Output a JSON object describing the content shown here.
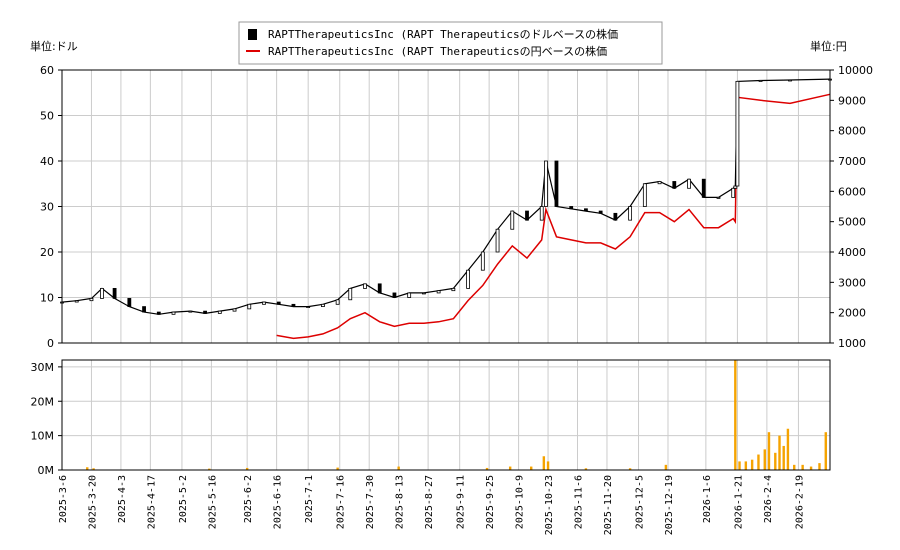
{
  "chart_data": {
    "type": "line",
    "legend": {
      "placement": "top-center",
      "entries": [
        {
          "label": "RAPTTherapeuticsInc (RAPT Therapeuticsのドルベースの株価",
          "color": "#000000",
          "marker": "candlestick"
        },
        {
          "label": "RAPTTherapeuticsInc (RAPT Therapeuticsの円ベースの株価",
          "color": "#dd0000",
          "marker": "line"
        }
      ]
    },
    "left_unit": "単位:ドル",
    "right_unit": "単位:円",
    "left_axis": {
      "ylim": [
        0,
        60
      ],
      "ticks": [
        0,
        10,
        20,
        30,
        40,
        50,
        60
      ]
    },
    "right_axis": {
      "ylim": [
        1000,
        10000
      ],
      "ticks": [
        1000,
        2000,
        3000,
        4000,
        5000,
        6000,
        7000,
        8000,
        9000,
        10000
      ]
    },
    "volume_axis": {
      "ylim": [
        0,
        32000000
      ],
      "ticks": [
        0,
        10000000,
        20000000,
        30000000
      ],
      "tick_labels": [
        "0M",
        "10M",
        "20M",
        "30M"
      ]
    },
    "x_range": [
      "2025-03-06",
      "2026-03-06"
    ],
    "x_ticks": [
      "2025-3-6",
      "2025-3-20",
      "2025-4-3",
      "2025-4-17",
      "2025-5-2",
      "2025-5-16",
      "2025-6-2",
      "2025-6-16",
      "2025-7-1",
      "2025-7-16",
      "2025-7-30",
      "2025-8-13",
      "2025-8-27",
      "2025-9-11",
      "2025-9-25",
      "2025-10-9",
      "2025-10-23",
      "2025-11-6",
      "2025-11-20",
      "2025-12-5",
      "2025-12-19",
      "2026-1-6",
      "2026-1-21",
      "2026-2-4",
      "2026-2-19"
    ],
    "grid": true,
    "usd_price": {
      "dates": [
        "2025-03-06",
        "2025-03-13",
        "2025-03-20",
        "2025-03-25",
        "2025-03-31",
        "2025-04-07",
        "2025-04-14",
        "2025-04-21",
        "2025-04-28",
        "2025-05-06",
        "2025-05-13",
        "2025-05-20",
        "2025-05-27",
        "2025-06-03",
        "2025-06-10",
        "2025-06-17",
        "2025-06-24",
        "2025-07-01",
        "2025-07-08",
        "2025-07-15",
        "2025-07-21",
        "2025-07-28",
        "2025-08-04",
        "2025-08-11",
        "2025-08-18",
        "2025-08-25",
        "2025-09-01",
        "2025-09-08",
        "2025-09-15",
        "2025-09-22",
        "2025-09-29",
        "2025-10-06",
        "2025-10-13",
        "2025-10-20",
        "2025-10-22",
        "2025-10-27",
        "2025-11-03",
        "2025-11-10",
        "2025-11-17",
        "2025-11-24",
        "2025-12-01",
        "2025-12-08",
        "2025-12-15",
        "2025-12-22",
        "2025-12-29",
        "2026-01-05",
        "2026-01-12",
        "2026-01-19",
        "2026-01-20",
        "2026-01-21",
        "2026-02-01",
        "2026-02-15",
        "2026-03-06"
      ],
      "values": [
        9,
        9.3,
        9.8,
        12,
        9.8,
        8,
        6.8,
        6.3,
        6.8,
        7,
        6.5,
        7,
        7.5,
        8.5,
        9,
        8.5,
        8,
        8,
        8.5,
        9.5,
        12,
        13,
        11,
        10,
        11,
        11,
        11.5,
        12,
        16,
        20,
        25,
        29,
        27,
        30,
        40,
        30,
        29.5,
        29,
        28.5,
        27,
        30,
        35,
        35.5,
        34,
        36,
        32,
        32,
        34,
        34.5,
        57.5,
        57.7,
        57.8,
        58
      ]
    },
    "jpy_price": {
      "dates": [
        "2025-06-16",
        "2025-06-24",
        "2025-07-01",
        "2025-07-08",
        "2025-07-15",
        "2025-07-21",
        "2025-07-28",
        "2025-08-04",
        "2025-08-11",
        "2025-08-18",
        "2025-08-25",
        "2025-09-01",
        "2025-09-08",
        "2025-09-15",
        "2025-09-22",
        "2025-09-29",
        "2025-10-06",
        "2025-10-13",
        "2025-10-20",
        "2025-10-22",
        "2025-10-27",
        "2025-11-03",
        "2025-11-10",
        "2025-11-17",
        "2025-11-24",
        "2025-12-01",
        "2025-12-08",
        "2025-12-15",
        "2025-12-22",
        "2025-12-29",
        "2026-01-05",
        "2026-01-12",
        "2026-01-19",
        "2026-01-20",
        "2026-01-21",
        "2026-02-01",
        "2026-02-15",
        "2026-03-06"
      ],
      "values": [
        1250,
        1150,
        1200,
        1300,
        1500,
        1800,
        2000,
        1700,
        1550,
        1650,
        1650,
        1700,
        1800,
        2400,
        2900,
        3600,
        4200,
        3800,
        4400,
        5400,
        4500,
        4400,
        4300,
        4300,
        4100,
        4500,
        5300,
        5300,
        5000,
        5400,
        4800,
        4800,
        5100,
        5000,
        9100,
        9000,
        8900,
        9200
      ]
    },
    "volume": {
      "dates": [
        "2025-03-18",
        "2025-03-21",
        "2025-05-15",
        "2025-06-02",
        "2025-07-15",
        "2025-08-13",
        "2025-09-24",
        "2025-10-05",
        "2025-10-15",
        "2025-10-21",
        "2025-10-23",
        "2025-11-10",
        "2025-12-01",
        "2025-12-18",
        "2026-01-20",
        "2026-01-22",
        "2026-01-25",
        "2026-01-28",
        "2026-01-31",
        "2026-02-03",
        "2026-02-05",
        "2026-02-08",
        "2026-02-10",
        "2026-02-12",
        "2026-02-14",
        "2026-02-17",
        "2026-02-21",
        "2026-02-25",
        "2026-03-01",
        "2026-03-04"
      ],
      "values": [
        800000,
        500000,
        400000,
        600000,
        700000,
        1000000,
        600000,
        1000000,
        1000000,
        4000000,
        2500000,
        500000,
        500000,
        1500000,
        32000000,
        2500000,
        2500000,
        3000000,
        4500000,
        6000000,
        11000000,
        5000000,
        10000000,
        7000000,
        12000000,
        1500000,
        1500000,
        1000000,
        2000000,
        11000000
      ],
      "color": "#f5a300"
    }
  }
}
